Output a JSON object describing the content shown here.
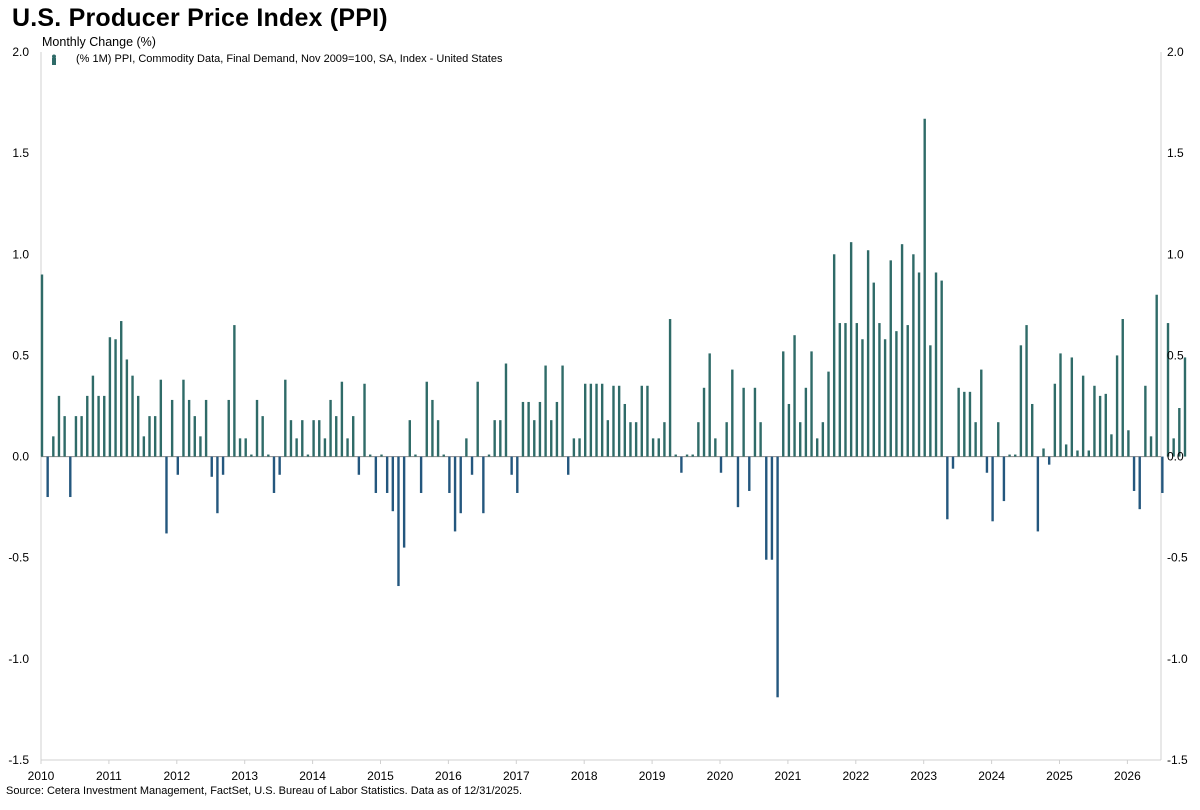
{
  "header": {
    "title": "U.S. Producer Price Index (PPI)",
    "subtitle": "Monthly Change (%)",
    "legend_label": "(% 1M) PPI, Commodity Data, Final Demand, Nov 2009=100, SA, Index - United States"
  },
  "footer": {
    "source": "Source: Cetera Investment Management, FactSet, U.S. Bureau of Labor Statistics. Data as of 12/31/2025."
  },
  "colors": {
    "positive": "#2f6b68",
    "negative": "#24577e",
    "zero_line": "#8a8a8a",
    "axis": "#d0d0d0"
  },
  "chart_data": {
    "type": "bar",
    "title": "U.S. Producer Price Index (PPI)",
    "ylabel": "Monthly Change (%)",
    "series_name": "(% 1M) PPI, Commodity Data, Final Demand, Nov 2009=100, SA, Index - United States",
    "start_month": "2010-01",
    "ylim": [
      -1.5,
      2.0
    ],
    "y_ticks": [
      "2.0",
      "1.5",
      "1.0",
      "0.5",
      "0.0",
      "-0.5",
      "-1.0",
      "-1.5"
    ],
    "y_tick_values": [
      2.0,
      1.5,
      1.0,
      0.5,
      0.0,
      -0.5,
      -1.0,
      -1.5
    ],
    "x_tick_labels": [
      "2010",
      "2011",
      "2012",
      "2013",
      "2014",
      "2015",
      "2016",
      "2017",
      "2018",
      "2019",
      "2020",
      "2021",
      "2022",
      "2023",
      "2024",
      "2025",
      "2026"
    ],
    "grid": false,
    "legend_position": "top-left",
    "values": [
      0.9,
      -0.2,
      0.1,
      0.3,
      0.2,
      -0.2,
      0.2,
      0.2,
      0.3,
      0.4,
      0.3,
      0.3,
      0.59,
      0.58,
      0.67,
      0.48,
      0.4,
      0.3,
      0.1,
      0.2,
      0.2,
      0.38,
      -0.38,
      0.28,
      -0.09,
      0.38,
      0.28,
      0.2,
      0.1,
      0.28,
      -0.1,
      -0.28,
      -0.09,
      0.28,
      0.65,
      0.09,
      0.09,
      0.01,
      0.28,
      0.2,
      0.01,
      -0.18,
      -0.09,
      0.38,
      0.18,
      0.09,
      0.18,
      0.01,
      0.18,
      0.18,
      0.09,
      0.28,
      0.2,
      0.37,
      0.09,
      0.2,
      -0.09,
      0.36,
      0.01,
      -0.18,
      0.01,
      -0.18,
      -0.27,
      -0.64,
      -0.45,
      0.18,
      0.01,
      -0.18,
      0.37,
      0.28,
      0.18,
      0.01,
      -0.18,
      -0.37,
      -0.28,
      0.09,
      -0.09,
      0.37,
      -0.28,
      0.01,
      0.18,
      0.18,
      0.46,
      -0.09,
      -0.18,
      0.27,
      0.27,
      0.18,
      0.27,
      0.45,
      0.18,
      0.27,
      0.45,
      -0.09,
      0.09,
      0.09,
      0.36,
      0.36,
      0.36,
      0.36,
      0.18,
      0.35,
      0.35,
      0.26,
      0.17,
      0.17,
      0.35,
      0.35,
      0.09,
      0.09,
      0.17,
      0.68,
      0.01,
      -0.08,
      0.01,
      0.01,
      0.17,
      0.34,
      0.51,
      0.09,
      -0.08,
      0.17,
      0.43,
      -0.25,
      0.34,
      -0.17,
      0.34,
      0.17,
      -0.51,
      -0.51,
      -1.19,
      0.52,
      0.26,
      0.6,
      0.17,
      0.34,
      0.52,
      0.09,
      0.17,
      0.42,
      1.0,
      0.66,
      0.66,
      1.06,
      0.66,
      0.58,
      1.02,
      0.86,
      0.66,
      0.58,
      0.97,
      0.62,
      1.05,
      0.65,
      1.0,
      0.91,
      1.67,
      0.55,
      0.91,
      0.87,
      -0.31,
      -0.06,
      0.34,
      0.32,
      0.32,
      0.17,
      0.43,
      -0.08,
      -0.32,
      0.17,
      -0.22,
      0.01,
      0.01,
      0.55,
      0.65,
      0.26,
      -0.37,
      0.04,
      -0.04,
      0.36,
      0.51,
      0.06,
      0.49,
      0.03,
      0.4,
      0.03,
      0.35,
      0.3,
      0.31,
      0.11,
      0.5,
      0.68,
      0.13,
      -0.17,
      -0.26,
      0.35,
      0.1,
      0.8,
      -0.18,
      0.66,
      0.09,
      0.24,
      0.49
    ]
  }
}
